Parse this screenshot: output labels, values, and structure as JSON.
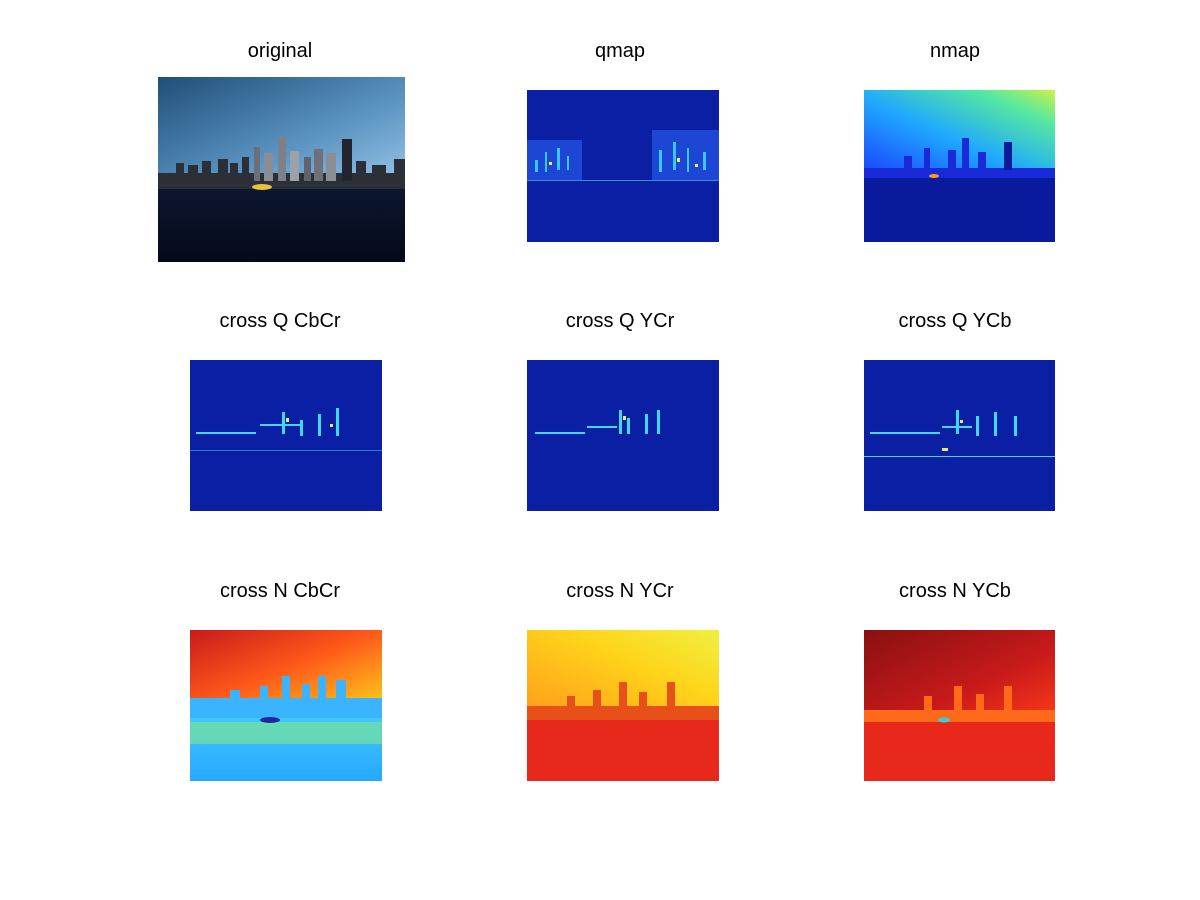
{
  "figure": {
    "background": "#ffffff",
    "panels": [
      {
        "id": "original",
        "title": "original",
        "kind": "photo",
        "colormap": "none"
      },
      {
        "id": "qmap",
        "title": "qmap",
        "kind": "sparse-edges",
        "colormap": "jet"
      },
      {
        "id": "nmap",
        "title": "nmap",
        "kind": "gradient-skyline",
        "colormap": "jet"
      },
      {
        "id": "cross-q-cbcr",
        "title": "cross Q CbCr",
        "kind": "sparse-edges",
        "colormap": "jet"
      },
      {
        "id": "cross-q-ycr",
        "title": "cross Q YCr",
        "kind": "sparse-edges",
        "colormap": "jet"
      },
      {
        "id": "cross-q-ycb",
        "title": "cross Q YCb",
        "kind": "sparse-edges",
        "colormap": "jet"
      },
      {
        "id": "cross-n-cbcr",
        "title": "cross N CbCr",
        "kind": "hot-skyline",
        "colormap": "jet"
      },
      {
        "id": "cross-n-ycr",
        "title": "cross N YCr",
        "kind": "warm-skyline",
        "colormap": "jet"
      },
      {
        "id": "cross-n-ycb",
        "title": "cross N YCb",
        "kind": "red-skyline",
        "colormap": "jet"
      }
    ]
  }
}
